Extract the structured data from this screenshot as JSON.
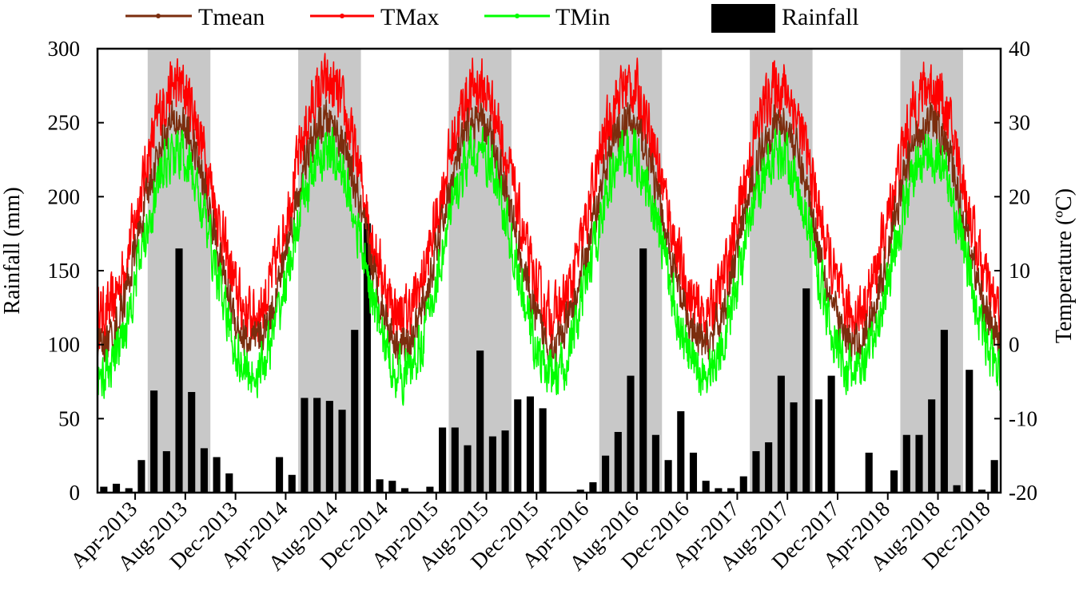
{
  "chart_data": {
    "type": "bar+line",
    "title": "",
    "legend": {
      "placement": "top",
      "entries": [
        "Tmean",
        "TMax",
        "TMin",
        "Rainfall"
      ]
    },
    "left_axis": {
      "label": "Rainfall (mm)",
      "range": [
        0,
        300
      ],
      "ticks": [
        0,
        50,
        100,
        150,
        200,
        250,
        300
      ]
    },
    "right_axis": {
      "label": "Temperature (ºC)",
      "range": [
        -20,
        40
      ],
      "ticks": [
        -20,
        -10,
        0,
        10,
        20,
        30,
        40
      ]
    },
    "x_axis": {
      "range": [
        "2013-01",
        "2018-12"
      ],
      "tick_labels": [
        "Apr-2013",
        "Aug-2013",
        "Dec-2013",
        "Apr-2014",
        "Aug-2014",
        "Dec-2014",
        "Apr-2015",
        "Aug-2015",
        "Dec-2015",
        "Apr-2016",
        "Aug-2016",
        "Dec-2016",
        "Apr-2017",
        "Aug-2017",
        "Dec-2017",
        "Apr-2018",
        "Aug-2018",
        "Dec-2018"
      ]
    },
    "shaded_periods": [
      [
        "2013-05",
        "2013-09"
      ],
      [
        "2014-05",
        "2014-09"
      ],
      [
        "2015-05",
        "2015-09"
      ],
      [
        "2016-05",
        "2016-09"
      ],
      [
        "2017-05",
        "2017-09"
      ],
      [
        "2018-05",
        "2018-09"
      ]
    ],
    "rainfall": {
      "name": "Rainfall",
      "color": "#000000",
      "months": [
        "2013-01",
        "2013-02",
        "2013-03",
        "2013-04",
        "2013-05",
        "2013-06",
        "2013-07",
        "2013-08",
        "2013-09",
        "2013-10",
        "2013-11",
        "2013-12",
        "2014-01",
        "2014-02",
        "2014-03",
        "2014-04",
        "2014-05",
        "2014-06",
        "2014-07",
        "2014-08",
        "2014-09",
        "2014-10",
        "2014-11",
        "2014-12",
        "2015-01",
        "2015-02",
        "2015-03",
        "2015-04",
        "2015-05",
        "2015-06",
        "2015-07",
        "2015-08",
        "2015-09",
        "2015-10",
        "2015-11",
        "2015-12",
        "2016-01",
        "2016-02",
        "2016-03",
        "2016-04",
        "2016-05",
        "2016-06",
        "2016-07",
        "2016-08",
        "2016-09",
        "2016-10",
        "2016-11",
        "2016-12",
        "2017-01",
        "2017-02",
        "2017-03",
        "2017-04",
        "2017-05",
        "2017-06",
        "2017-07",
        "2017-08",
        "2017-09",
        "2017-10",
        "2017-11",
        "2017-12",
        "2018-01",
        "2018-02",
        "2018-03",
        "2018-04",
        "2018-05",
        "2018-06",
        "2018-07",
        "2018-08",
        "2018-09",
        "2018-10",
        "2018-11",
        "2018-12"
      ],
      "values": [
        4,
        6,
        3,
        22,
        69,
        28,
        165,
        68,
        30,
        24,
        13,
        0,
        0,
        0,
        24,
        12,
        64,
        64,
        62,
        56,
        110,
        182,
        9,
        8,
        3,
        0,
        4,
        44,
        44,
        32,
        96,
        38,
        42,
        63,
        65,
        57,
        0,
        0,
        2,
        7,
        25,
        41,
        79,
        165,
        39,
        22,
        55,
        27,
        8,
        3,
        3,
        11,
        28,
        34,
        79,
        61,
        138,
        63,
        79,
        0,
        0,
        27,
        0,
        15,
        39,
        39,
        63,
        110,
        5,
        83,
        2,
        22
      ]
    },
    "temperature_series": [
      {
        "name": "Tmean",
        "color": "#7b2d0e",
        "annual_min_c": 0,
        "annual_max_c": 30,
        "coldest_day": "01-10",
        "daily_noise_c": 2.5
      },
      {
        "name": "TMax",
        "color": "#ff0000",
        "annual_min_c": 4,
        "annual_max_c": 35,
        "coldest_day": "01-10",
        "daily_noise_c": 3.5
      },
      {
        "name": "TMin",
        "color": "#00ff00",
        "annual_min_c": -4,
        "annual_max_c": 26,
        "coldest_day": "01-10",
        "daily_noise_c": 3
      }
    ]
  }
}
